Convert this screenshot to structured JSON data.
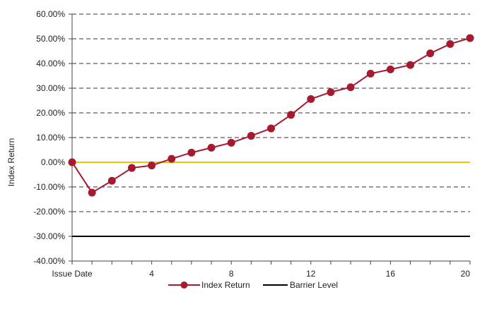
{
  "chart_data": {
    "type": "line",
    "ylabel": "Index Return",
    "ylim": [
      -40,
      60
    ],
    "yticks": [
      60,
      50,
      40,
      30,
      20,
      10,
      0,
      -10,
      -20,
      -30,
      -40
    ],
    "ytick_labels": [
      "60.00%",
      "50.00%",
      "40.00%",
      "30.00%",
      "20.00%",
      "10.00%",
      "0.00%",
      "-10.00%",
      "-20.00%",
      "-30.00%",
      "-40.00%"
    ],
    "xlim": [
      0,
      20
    ],
    "xticks": [
      0,
      4,
      8,
      12,
      16,
      20
    ],
    "xtick_labels": [
      "Issue Date",
      "4",
      "8",
      "12",
      "16",
      "20"
    ],
    "grid": "horizontal dashed",
    "legend_position": "bottom",
    "series": [
      {
        "name": "Index Return",
        "color": "#a6192e",
        "marker": "circle",
        "x": [
          0,
          1,
          2,
          3,
          4,
          5,
          6,
          7,
          8,
          9,
          10,
          11,
          12,
          13,
          14,
          15,
          16,
          17,
          18,
          19,
          20
        ],
        "values": [
          0,
          -12.3,
          -7.5,
          -2.3,
          -1.3,
          1.4,
          3.9,
          5.9,
          7.9,
          10.7,
          13.7,
          19.2,
          25.6,
          28.4,
          30.4,
          35.9,
          37.6,
          39.4,
          44.1,
          47.9,
          50.3
        ]
      },
      {
        "name": "Barrier Level",
        "color": "#000000",
        "values": [
          -30,
          -30
        ]
      }
    ],
    "reference_lines": [
      {
        "y": 0,
        "color": "#f2c100"
      }
    ]
  }
}
